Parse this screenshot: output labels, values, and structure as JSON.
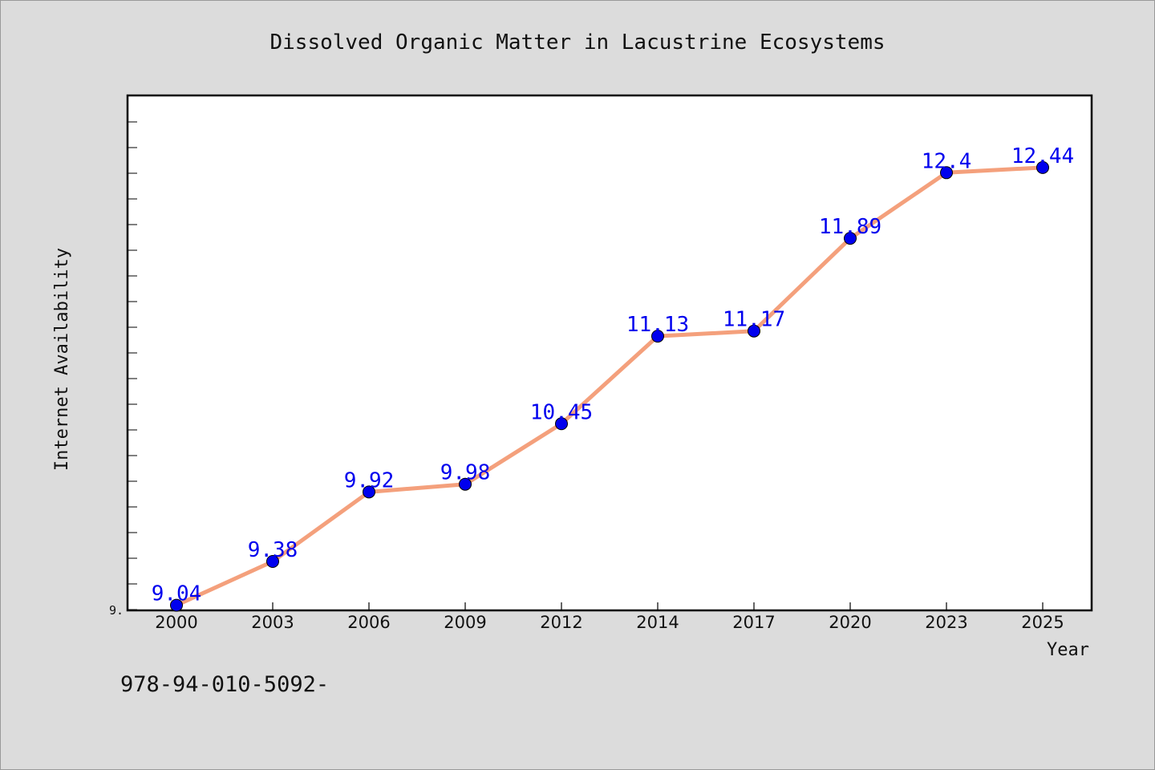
{
  "colors": {
    "background": "#dcdcdc",
    "plot_bg": "#ffffff",
    "line": "#f4a07c",
    "marker": "#0000ee",
    "label": "#0000ee"
  },
  "footer_text": "978-94-010-5092-",
  "chart_data": {
    "type": "line",
    "title": "Dissolved Organic Matter in Lacustrine Ecosystems",
    "xlabel": "Year",
    "ylabel": "Internet Availability",
    "categories": [
      "2000",
      "2003",
      "2006",
      "2009",
      "2012",
      "2014",
      "2017",
      "2020",
      "2023",
      "2025"
    ],
    "values": [
      9.04,
      9.38,
      9.92,
      9.98,
      10.45,
      11.13,
      11.17,
      11.89,
      12.4,
      12.44
    ],
    "data_labels": [
      "9.04",
      "9.38",
      "9.92",
      "9.98",
      "10.45",
      "11.13",
      "11.17",
      "11.89",
      "12.4",
      "12.44"
    ],
    "ytick_labels": [
      "9."
    ],
    "ylim": [
      9.0,
      13.0
    ],
    "grid": false,
    "legend": "none"
  }
}
